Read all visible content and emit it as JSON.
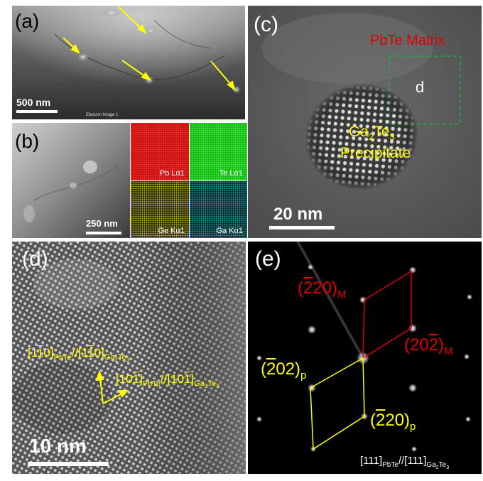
{
  "figure": {
    "panel_a": {
      "label": "(a)",
      "scale_bar": "500 nm",
      "caption_tiny": "Electron Image 1"
    },
    "panel_b": {
      "label": "(b)",
      "scale_bar": "250 nm",
      "maps": [
        {
          "label": "Pb Lα1",
          "color": "#d41414"
        },
        {
          "label": "Te Lα1",
          "color": "#16c016"
        },
        {
          "label": "Ge Kα1",
          "color": "#c8c81e"
        },
        {
          "label": "Ga Kα1",
          "color": "#18a0a0"
        }
      ]
    },
    "panel_c": {
      "label": "(c)",
      "matrix_label": "PbTe Matrix",
      "box_label": "d",
      "precip_line1_base": "Ga",
      "precip_line1_sub1": "2",
      "precip_line1_mid": "Te",
      "precip_line1_sub2": "3",
      "precip_line2": "Precipitate",
      "scale_bar": "20 nm"
    },
    "panel_d": {
      "label": "(d)",
      "dir1_a": "[1",
      "dir1_a_bar": "1",
      "dir1_a_end": "0]",
      "dir1_sub": "PbTe",
      "dir1_mid": "//[1",
      "dir1_b_bar": "1",
      "dir1_b_end": "0]",
      "dir1_sub2": "Ga",
      "dir1_sub2_n": "2",
      "dir1_sub2_b": "Te",
      "dir1_sub2_n2": "3",
      "dir2_a": "[10",
      "dir2_a_bar": "1",
      "dir2_a_end": "]",
      "dir2_sub": "PbTe",
      "dir2_mid": "//[10",
      "dir2_b_bar": "1",
      "dir2_b_end": "]",
      "dir2_sub2": "Ga",
      "dir2_sub2_n": "2",
      "dir2_sub2_b": "Te",
      "dir2_sub2_n2": "3",
      "scale_bar": "10 nm"
    },
    "panel_e": {
      "label": "(e)",
      "m1_open": "(",
      "m1_bar": "2",
      "m1_rest": "20)",
      "m1_sub": "M",
      "m2_open": "(20",
      "m2_bar": "2",
      "m2_rest": ")",
      "m2_sub": "M",
      "p1_open": "(",
      "p1_bar": "2",
      "p1_rest": "02)",
      "p1_sub": "p",
      "p2_open": "(",
      "p2_bar": "2",
      "p2_rest": "20)",
      "p2_sub": "p",
      "zone_a": "[111]",
      "zone_sub1": "PbTe",
      "zone_mid": "//[111]",
      "zone_sub2a": "Ga",
      "zone_sub2n": "2",
      "zone_sub2b": "Te",
      "zone_sub2n2": "3"
    },
    "colors": {
      "yellow_annotation": "#ffff00",
      "red_annotation": "#e00000",
      "green_box": "#22aa44"
    }
  }
}
